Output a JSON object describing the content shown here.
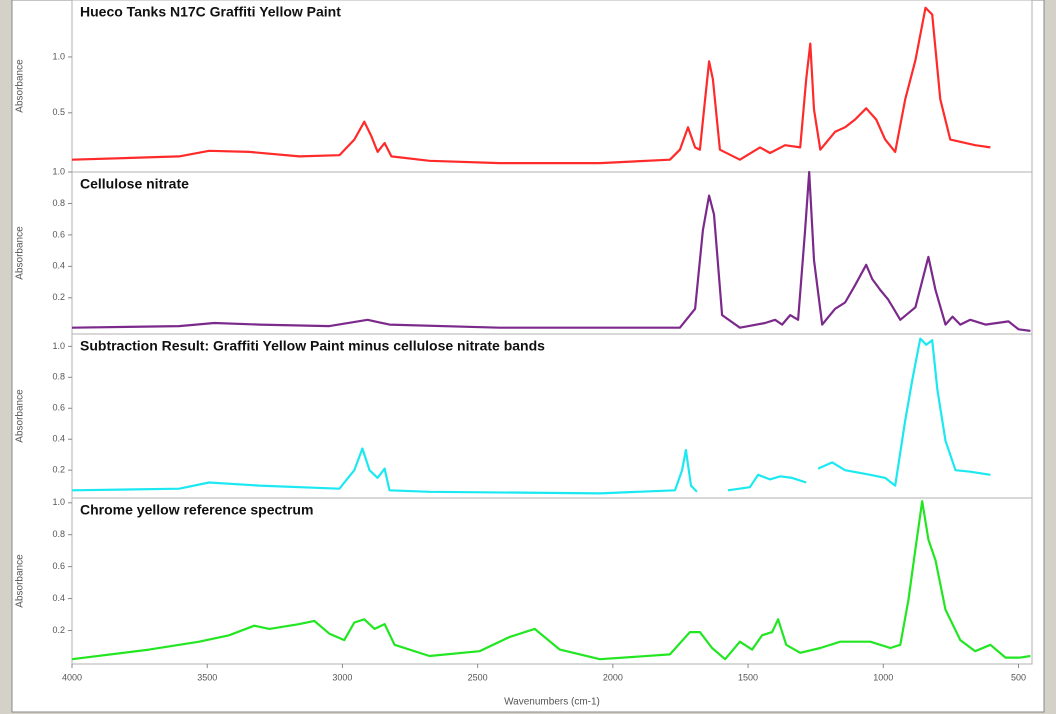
{
  "chart_data": [
    {
      "type": "line",
      "title": "Hueco Tanks N17C Graffiti Yellow Paint",
      "ylabel": "Absorbance",
      "color": "#ff2a2a",
      "xlim": [
        4000,
        450
      ],
      "ylim": [
        -0.03,
        1.51
      ],
      "yticks": [
        0.5,
        {
          "value": 1,
          "label": "1.0"
        }
      ],
      "x": [
        4000,
        3604,
        3493,
        3344,
        3159,
        3011,
        2956,
        2919,
        2893,
        2870,
        2844,
        2819,
        2678,
        2419,
        2048,
        1789,
        1752,
        1722,
        1696,
        1678,
        1659,
        1644,
        1630,
        1604,
        1530,
        1456,
        1419,
        1363,
        1307,
        1285,
        1270,
        1256,
        1233,
        1178,
        1141,
        1104,
        1063,
        1026,
        993,
        956,
        919,
        881,
        844,
        819,
        789,
        752,
        715,
        660,
        604
      ],
      "values": [
        0.08,
        0.11,
        0.16,
        0.15,
        0.11,
        0.12,
        0.26,
        0.42,
        0.29,
        0.15,
        0.23,
        0.11,
        0.07,
        0.05,
        0.05,
        0.08,
        0.17,
        0.37,
        0.19,
        0.17,
        0.62,
        0.96,
        0.8,
        0.17,
        0.08,
        0.19,
        0.14,
        0.21,
        0.19,
        0.8,
        1.12,
        0.53,
        0.17,
        0.33,
        0.37,
        0.44,
        0.54,
        0.44,
        0.26,
        0.15,
        0.62,
        0.97,
        1.44,
        1.38,
        0.62,
        0.26,
        0.24,
        0.21,
        0.19
      ]
    },
    {
      "type": "line",
      "title": "Cellulose nitrate",
      "ylabel": "Absorbance",
      "color": "#7b2a8c",
      "xlim": [
        4000,
        450
      ],
      "ylim": [
        -0.03,
        1.0
      ],
      "yticks": [
        0.2,
        0.4,
        0.6,
        0.8,
        {
          "value": 1,
          "label": "1.0"
        }
      ],
      "x": [
        4000,
        3604,
        3474,
        3307,
        3048,
        2907,
        2826,
        2419,
        1752,
        1696,
        1667,
        1644,
        1626,
        1596,
        1530,
        1437,
        1400,
        1374,
        1344,
        1315,
        1289,
        1274,
        1256,
        1226,
        1178,
        1141,
        1104,
        1063,
        1041,
        1011,
        982,
        937,
        881,
        833,
        807,
        770,
        744,
        715,
        678,
        622,
        537,
        500,
        456
      ],
      "values": [
        0.01,
        0.02,
        0.04,
        0.03,
        0.02,
        0.06,
        0.03,
        0.01,
        0.01,
        0.13,
        0.63,
        0.85,
        0.73,
        0.09,
        0.01,
        0.04,
        0.06,
        0.03,
        0.09,
        0.06,
        0.63,
        1.0,
        0.44,
        0.03,
        0.13,
        0.17,
        0.28,
        0.41,
        0.32,
        0.25,
        0.19,
        0.06,
        0.14,
        0.46,
        0.25,
        0.03,
        0.08,
        0.03,
        0.06,
        0.03,
        0.05,
        0,
        -0.01
      ]
    },
    {
      "type": "line",
      "title": "Subtraction Result: Graffiti Yellow Paint minus cellulose nitrate bands",
      "ylabel": "Absorbance",
      "color": "#1ce8f2",
      "xlim": [
        4000,
        450
      ],
      "ylim": [
        0.02,
        1.08
      ],
      "yticks": [
        0.2,
        0.4,
        0.6,
        0.8,
        {
          "value": 1,
          "label": "1.0"
        }
      ],
      "x": [
        4000,
        3604,
        3493,
        3307,
        3011,
        2956,
        2926,
        2900,
        2870,
        2844,
        2826,
        2678,
        2048,
        1770,
        1744,
        1730,
        1711,
        1689,
        1620,
        1574,
        1493,
        1463,
        1419,
        1381,
        1337,
        1285,
        1263,
        1241,
        1189,
        1141,
        1048,
        993,
        956,
        919,
        893,
        863,
        841,
        819,
        800,
        770,
        733,
        678,
        604
      ],
      "values": [
        0.07,
        0.08,
        0.12,
        0.1,
        0.08,
        0.2,
        0.34,
        0.2,
        0.15,
        0.21,
        0.07,
        0.06,
        0.05,
        0.07,
        0.2,
        0.33,
        0.1,
        0.06,
        null,
        0.07,
        0.09,
        0.17,
        0.14,
        0.16,
        0.15,
        0.12,
        null,
        0.21,
        0.25,
        0.2,
        0.17,
        0.15,
        0.1,
        0.52,
        0.78,
        1.05,
        1.01,
        1.04,
        0.72,
        0.39,
        0.2,
        0.19,
        0.17
      ]
    },
    {
      "type": "line",
      "title": "Chrome yellow reference spectrum",
      "ylabel": "Absorbance",
      "xlabel": "Wavenumbers (cm-1)",
      "color": "#22e622",
      "xlim": [
        4000,
        450
      ],
      "ylim": [
        -0.01,
        1.03
      ],
      "yticks": [
        0.2,
        0.4,
        0.6,
        0.8,
        {
          "value": 1,
          "label": "1.0"
        }
      ],
      "xticks": [
        4000,
        3500,
        3000,
        2500,
        2000,
        1500,
        1000,
        500
      ],
      "x": [
        4000,
        3715,
        3530,
        3419,
        3326,
        3270,
        3159,
        3104,
        3048,
        2993,
        2956,
        2919,
        2881,
        2844,
        2807,
        2678,
        2493,
        2381,
        2289,
        2196,
        2048,
        1789,
        1715,
        1678,
        1633,
        1585,
        1530,
        1485,
        1448,
        1411,
        1389,
        1359,
        1307,
        1233,
        1159,
        1048,
        974,
        937,
        907,
        881,
        856,
        833,
        807,
        770,
        715,
        660,
        604,
        548,
        493,
        456
      ],
      "values": [
        0.02,
        0.08,
        0.13,
        0.17,
        0.23,
        0.21,
        0.24,
        0.26,
        0.18,
        0.14,
        0.25,
        0.27,
        0.21,
        0.24,
        0.11,
        0.04,
        0.07,
        0.16,
        0.21,
        0.08,
        0.02,
        0.05,
        0.19,
        0.19,
        0.09,
        0.02,
        0.13,
        0.08,
        0.17,
        0.19,
        0.27,
        0.11,
        0.06,
        0.09,
        0.13,
        0.13,
        0.09,
        0.11,
        0.39,
        0.71,
        1.01,
        0.77,
        0.64,
        0.33,
        0.14,
        0.07,
        0.11,
        0.03,
        0.03,
        0.04
      ]
    }
  ]
}
